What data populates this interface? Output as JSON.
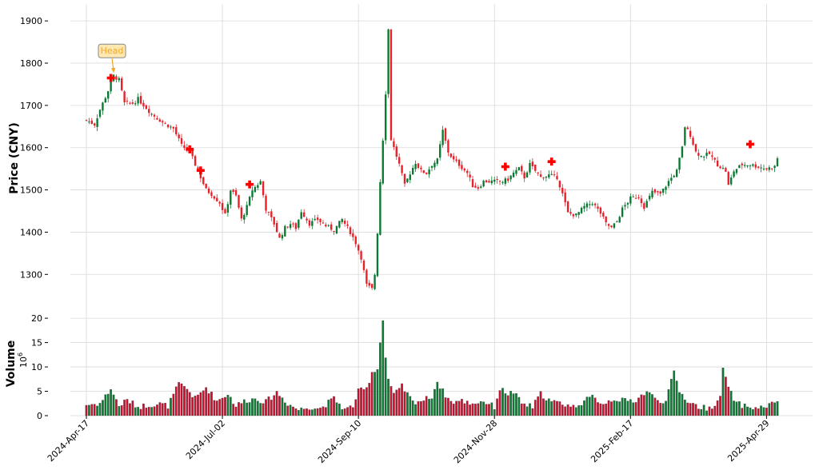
{
  "chart_data": {
    "type": "candlestick",
    "price_axis": {
      "label": "Price (CNY)",
      "ticks": [
        1300,
        1400,
        1500,
        1600,
        1700,
        1800,
        1900
      ],
      "ylim": [
        1240,
        1940
      ]
    },
    "volume_axis": {
      "label": "Volume",
      "exponent_label": "10",
      "exponent": "6",
      "ticks": [
        0,
        5,
        10,
        15,
        20
      ],
      "ylim": [
        0,
        21
      ]
    },
    "x_axis": {
      "tick_labels": [
        "2024-Apr-17",
        "2024-Jul-02",
        "2024-Sep-10",
        "2024-Nov-28",
        "2025-Feb-17",
        "2025-Apr-29"
      ],
      "tick_index": [
        0,
        50,
        100,
        150,
        200,
        250
      ]
    },
    "colors": {
      "up": "#0a7a32",
      "down": "#e8202a",
      "marker": "#ff0000",
      "annotation_arrow": "#f5a623"
    },
    "grid": true,
    "annotation": {
      "text": "Head",
      "index": 10,
      "price": 1775
    },
    "markers": [
      {
        "index": 9,
        "price": 1765
      },
      {
        "index": 38,
        "price": 1596
      },
      {
        "index": 42,
        "price": 1546
      },
      {
        "index": 60,
        "price": 1513
      },
      {
        "index": 154,
        "price": 1555
      },
      {
        "index": 171,
        "price": 1567
      },
      {
        "index": 244,
        "price": 1608
      }
    ],
    "close_anchors": [
      [
        0,
        1665
      ],
      [
        3,
        1655
      ],
      [
        5,
        1690
      ],
      [
        8,
        1735
      ],
      [
        10,
        1770
      ],
      [
        12,
        1760
      ],
      [
        14,
        1705
      ],
      [
        17,
        1705
      ],
      [
        19,
        1715
      ],
      [
        24,
        1680
      ],
      [
        28,
        1660
      ],
      [
        32,
        1645
      ],
      [
        35,
        1605
      ],
      [
        38,
        1590
      ],
      [
        42,
        1530
      ],
      [
        44,
        1500
      ],
      [
        46,
        1490
      ],
      [
        49,
        1470
      ],
      [
        51,
        1440
      ],
      [
        53,
        1500
      ],
      [
        55,
        1485
      ],
      [
        57,
        1430
      ],
      [
        59,
        1460
      ],
      [
        61,
        1500
      ],
      [
        64,
        1520
      ],
      [
        66,
        1455
      ],
      [
        69,
        1420
      ],
      [
        71,
        1385
      ],
      [
        73,
        1410
      ],
      [
        75,
        1420
      ],
      [
        77,
        1410
      ],
      [
        79,
        1450
      ],
      [
        82,
        1420
      ],
      [
        85,
        1430
      ],
      [
        88,
        1415
      ],
      [
        91,
        1405
      ],
      [
        94,
        1430
      ],
      [
        97,
        1400
      ],
      [
        99,
        1375
      ],
      [
        101,
        1340
      ],
      [
        103,
        1275
      ],
      [
        105,
        1265
      ],
      [
        106,
        1300
      ],
      [
        107,
        1400
      ],
      [
        108,
        1520
      ],
      [
        109,
        1620
      ],
      [
        110,
        1730
      ],
      [
        111,
        1880
      ],
      [
        112,
        1620
      ],
      [
        113,
        1600
      ],
      [
        115,
        1560
      ],
      [
        117,
        1510
      ],
      [
        119,
        1540
      ],
      [
        121,
        1565
      ],
      [
        123,
        1545
      ],
      [
        125,
        1540
      ],
      [
        127,
        1560
      ],
      [
        129,
        1570
      ],
      [
        131,
        1640
      ],
      [
        133,
        1590
      ],
      [
        135,
        1570
      ],
      [
        137,
        1560
      ],
      [
        140,
        1540
      ],
      [
        142,
        1510
      ],
      [
        144,
        1505
      ],
      [
        146,
        1520
      ],
      [
        150,
        1520
      ],
      [
        153,
        1520
      ],
      [
        155,
        1525
      ],
      [
        157,
        1540
      ],
      [
        159,
        1550
      ],
      [
        161,
        1530
      ],
      [
        163,
        1560
      ],
      [
        165,
        1545
      ],
      [
        167,
        1530
      ],
      [
        170,
        1535
      ],
      [
        173,
        1530
      ],
      [
        175,
        1490
      ],
      [
        177,
        1445
      ],
      [
        180,
        1440
      ],
      [
        183,
        1460
      ],
      [
        186,
        1470
      ],
      [
        189,
        1445
      ],
      [
        191,
        1420
      ],
      [
        193,
        1410
      ],
      [
        195,
        1425
      ],
      [
        197,
        1455
      ],
      [
        200,
        1480
      ],
      [
        203,
        1485
      ],
      [
        205,
        1460
      ],
      [
        208,
        1495
      ],
      [
        211,
        1490
      ],
      [
        214,
        1520
      ],
      [
        217,
        1545
      ],
      [
        219,
        1600
      ],
      [
        220,
        1650
      ],
      [
        222,
        1630
      ],
      [
        224,
        1590
      ],
      [
        226,
        1580
      ],
      [
        229,
        1585
      ],
      [
        232,
        1560
      ],
      [
        235,
        1545
      ],
      [
        236,
        1510
      ],
      [
        238,
        1545
      ],
      [
        241,
        1560
      ],
      [
        244,
        1560
      ],
      [
        247,
        1555
      ],
      [
        250,
        1550
      ],
      [
        253,
        1555
      ],
      [
        254,
        1575
      ]
    ],
    "volume_anchors": [
      [
        0,
        2.2
      ],
      [
        5,
        2.5
      ],
      [
        9,
        5.5
      ],
      [
        12,
        2.0
      ],
      [
        15,
        3.2
      ],
      [
        19,
        1.8
      ],
      [
        23,
        2.2
      ],
      [
        27,
        2.4
      ],
      [
        30,
        2.0
      ],
      [
        34,
        6.5
      ],
      [
        37,
        5.5
      ],
      [
        40,
        3.5
      ],
      [
        44,
        5.8
      ],
      [
        48,
        3.0
      ],
      [
        52,
        4.5
      ],
      [
        55,
        2.0
      ],
      [
        58,
        3.0
      ],
      [
        62,
        3.5
      ],
      [
        66,
        2.8
      ],
      [
        70,
        4.8
      ],
      [
        74,
        2.5
      ],
      [
        78,
        1.2
      ],
      [
        82,
        1.8
      ],
      [
        86,
        1.5
      ],
      [
        91,
        3.5
      ],
      [
        95,
        1.2
      ],
      [
        98,
        2.0
      ],
      [
        100,
        5.0
      ],
      [
        103,
        5.5
      ],
      [
        105,
        9.0
      ],
      [
        107,
        9.5
      ],
      [
        108,
        15.5
      ],
      [
        109,
        19.5
      ],
      [
        110,
        12.0
      ],
      [
        111,
        7.5
      ],
      [
        113,
        4.2
      ],
      [
        116,
        6.0
      ],
      [
        120,
        2.8
      ],
      [
        124,
        3.2
      ],
      [
        127,
        4.0
      ],
      [
        129,
        7.0
      ],
      [
        131,
        5.0
      ],
      [
        134,
        2.8
      ],
      [
        138,
        3.0
      ],
      [
        142,
        2.5
      ],
      [
        146,
        3.0
      ],
      [
        150,
        1.8
      ],
      [
        152,
        5.5
      ],
      [
        155,
        4.5
      ],
      [
        157,
        4.8
      ],
      [
        160,
        2.5
      ],
      [
        164,
        1.8
      ],
      [
        167,
        4.5
      ],
      [
        171,
        2.8
      ],
      [
        175,
        2.5
      ],
      [
        179,
        1.8
      ],
      [
        183,
        3.0
      ],
      [
        186,
        3.8
      ],
      [
        190,
        2.5
      ],
      [
        194,
        3.5
      ],
      [
        198,
        3.0
      ],
      [
        202,
        3.2
      ],
      [
        206,
        5.0
      ],
      [
        209,
        3.5
      ],
      [
        213,
        2.8
      ],
      [
        216,
        9.0
      ],
      [
        218,
        5.0
      ],
      [
        221,
        3.0
      ],
      [
        225,
        1.8
      ],
      [
        229,
        1.5
      ],
      [
        233,
        3.5
      ],
      [
        234,
        10.0
      ],
      [
        236,
        5.5
      ],
      [
        239,
        2.5
      ],
      [
        243,
        1.8
      ],
      [
        247,
        1.5
      ],
      [
        250,
        2.0
      ],
      [
        253,
        2.5
      ],
      [
        254,
        3.2
      ]
    ],
    "n_candles": 255
  }
}
